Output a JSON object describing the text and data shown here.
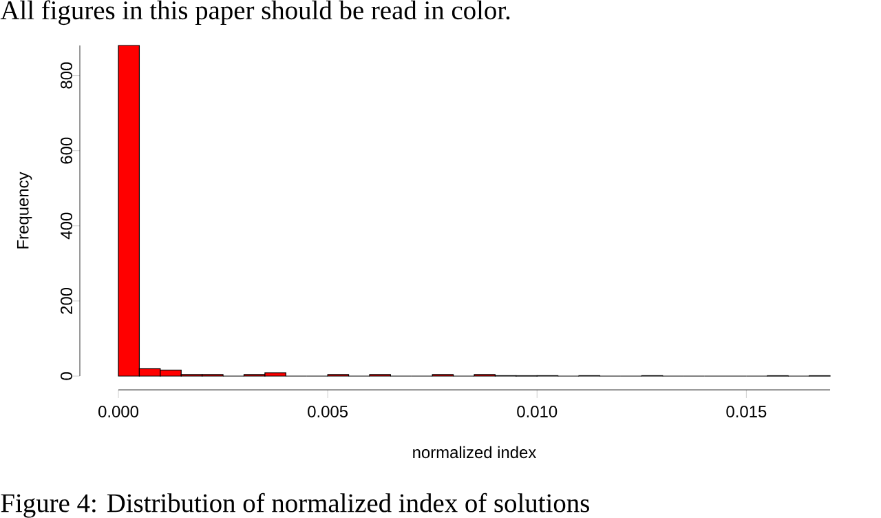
{
  "chart_data": {
    "type": "histogram",
    "annotations": [
      "All figures in this paper should be read in color.",
      "Figure 4: Distribution of normalized index of solutions"
    ],
    "xlabel": "normalized index",
    "ylabel": "Frequency",
    "bins": [
      0,
      0.0005,
      0.001,
      0.0015,
      0.002,
      0.0025,
      0.003,
      0.0035,
      0.004,
      0.0045,
      0.005,
      0.0055,
      0.006,
      0.0065,
      0.007,
      0.0075,
      0.008,
      0.0085,
      0.009,
      0.0095,
      0.01,
      0.0105,
      0.011,
      0.0115,
      0.012,
      0.0125,
      0.013,
      0.0135,
      0.014,
      0.0145,
      0.015,
      0.0155,
      0.016,
      0.0165,
      0.017
    ],
    "values": [
      880,
      20,
      16,
      4,
      4,
      0,
      4,
      9,
      0,
      0,
      4,
      0,
      4,
      0,
      0,
      4,
      0,
      4,
      1,
      1,
      1,
      0,
      1,
      0,
      0,
      1,
      0,
      0,
      0,
      0,
      0,
      1,
      0,
      1
    ],
    "color": "#ff0000",
    "xlim": [
      0,
      0.017
    ],
    "ylim": [
      0,
      880
    ],
    "xticks": [
      {
        "value": 0,
        "label": "0.000"
      },
      {
        "value": 0.005,
        "label": "0.005"
      },
      {
        "value": 0.01,
        "label": "0.010"
      },
      {
        "value": 0.015,
        "label": "0.015"
      }
    ],
    "yticks": [
      0,
      200,
      400,
      600,
      800
    ],
    "grid": false
  }
}
